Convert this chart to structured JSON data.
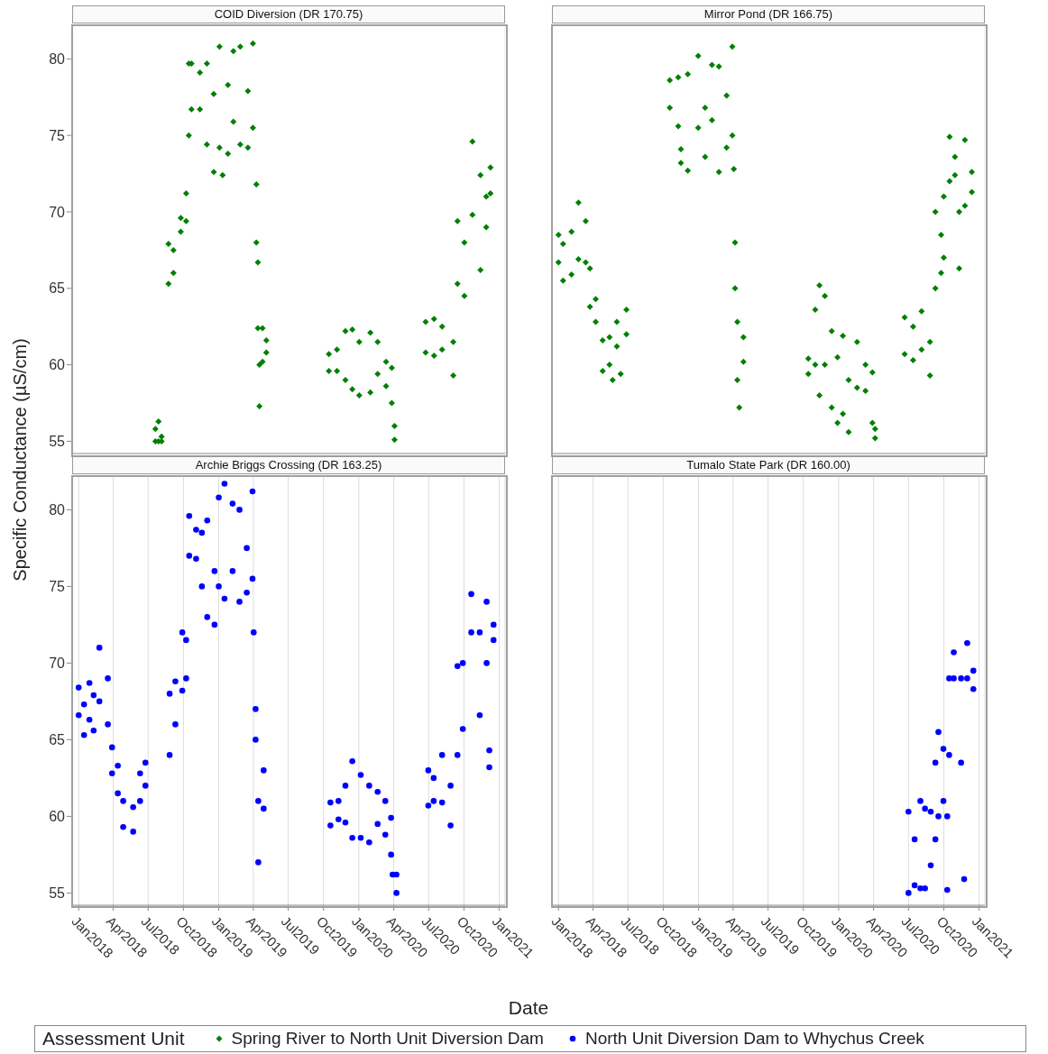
{
  "chart_data": [
    {
      "type": "scatter",
      "title": "COID Diversion (DR 170.75)",
      "ylabel": "Specific Conductance (µS/cm)",
      "legend": "bottom",
      "legend_title": "Assessment Unit",
      "grid": "x",
      "tick_labels": "y",
      "xlim": [
        "2017-12-15",
        "2021-01-16"
      ],
      "xticks": [
        {
          "value": "2018-01-01",
          "label": null
        },
        {
          "value": "2018-04-01",
          "label": null
        },
        {
          "value": "2018-07-01",
          "label": null
        },
        {
          "value": "2018-10-01",
          "label": null
        },
        {
          "value": "2019-01-01",
          "label": null
        },
        {
          "value": "2019-04-01",
          "label": null
        },
        {
          "value": "2019-07-01",
          "label": null
        },
        {
          "value": "2019-10-01",
          "label": null
        },
        {
          "value": "2020-01-01",
          "label": null
        },
        {
          "value": "2020-04-01",
          "label": null
        },
        {
          "value": "2020-07-01",
          "label": null
        },
        {
          "value": "2020-10-01",
          "label": null
        },
        {
          "value": "2021-01-01",
          "label": null
        }
      ],
      "ylim": [
        54.2,
        82.2
      ],
      "yticks": [
        55,
        60,
        65,
        70,
        75,
        80
      ],
      "series": [
        {
          "name": "Spring River to North Unit Diversion Dam",
          "color": "#008000",
          "marker": "diamond",
          "x": [
            "2018-07-20",
            "2018-07-20",
            "2018-07-28",
            "2018-07-28",
            "2018-08-05",
            "2018-08-05",
            "2018-08-23",
            "2018-08-23",
            "2018-09-05",
            "2018-09-05",
            "2018-09-24",
            "2018-09-24",
            "2018-10-08",
            "2018-10-08",
            "2018-10-15",
            "2018-10-15",
            "2018-10-22",
            "2018-10-22",
            "2018-11-13",
            "2018-11-13",
            "2018-12-01",
            "2018-12-01",
            "2018-12-19",
            "2018-12-19",
            "2019-01-03",
            "2019-01-03",
            "2019-01-11",
            "2019-01-25",
            "2019-01-25",
            "2019-02-08",
            "2019-02-08",
            "2019-02-26",
            "2019-02-26",
            "2019-03-18",
            "2019-03-18",
            "2019-03-31",
            "2019-03-31",
            "2019-04-09",
            "2019-04-09",
            "2019-04-13",
            "2019-04-13",
            "2019-04-17",
            "2019-04-17",
            "2019-04-25",
            "2019-04-25",
            "2019-05-05",
            "2019-05-05",
            "2019-10-15",
            "2019-10-15",
            "2019-11-05",
            "2019-11-05",
            "2019-11-27",
            "2019-11-27",
            "2019-12-15",
            "2019-12-15",
            "2020-01-02",
            "2020-01-02",
            "2020-01-31",
            "2020-01-31",
            "2020-02-19",
            "2020-02-19",
            "2020-03-12",
            "2020-03-12",
            "2020-03-27",
            "2020-03-27",
            "2020-04-03",
            "2020-04-03",
            "2020-06-23",
            "2020-06-23",
            "2020-07-15",
            "2020-07-15",
            "2020-08-05",
            "2020-08-05",
            "2020-09-03",
            "2020-09-03",
            "2020-09-14",
            "2020-09-14",
            "2020-10-02",
            "2020-10-02",
            "2020-10-23",
            "2020-10-23",
            "2020-11-13",
            "2020-11-13",
            "2020-11-28",
            "2020-11-28",
            "2020-12-09",
            "2020-12-09"
          ],
          "values": [
            55.0,
            55.8,
            55.0,
            56.3,
            55.0,
            55.3,
            67.9,
            65.3,
            67.5,
            66.0,
            69.6,
            68.7,
            71.2,
            69.4,
            79.7,
            75.0,
            79.7,
            76.7,
            79.1,
            76.7,
            79.7,
            74.4,
            77.7,
            72.6,
            80.8,
            74.2,
            72.4,
            78.3,
            73.8,
            80.5,
            75.9,
            80.8,
            74.4,
            77.9,
            74.2,
            81.0,
            75.5,
            71.8,
            68.0,
            66.7,
            62.4,
            57.3,
            60.0,
            62.4,
            60.2,
            61.6,
            60.8,
            59.6,
            60.7,
            59.6,
            61.0,
            62.2,
            59.0,
            62.3,
            58.4,
            58.0,
            61.5,
            62.1,
            58.2,
            61.5,
            59.4,
            60.2,
            58.6,
            59.8,
            57.5,
            55.1,
            56.0,
            62.8,
            60.8,
            63.0,
            60.6,
            62.5,
            61.0,
            59.3,
            61.5,
            65.3,
            69.4,
            68.0,
            64.5,
            74.6,
            69.8,
            72.4,
            66.2,
            71.0,
            69.0,
            72.9,
            71.2
          ]
        }
      ]
    },
    {
      "type": "scatter",
      "title": "Mirror Pond (DR 166.75)",
      "grid": "x",
      "tick_labels": false,
      "xlim": [
        "2017-12-15",
        "2021-01-16"
      ],
      "xticks": [
        {
          "value": "2018-01-01",
          "label": null
        },
        {
          "value": "2018-04-01",
          "label": null
        },
        {
          "value": "2018-07-01",
          "label": null
        },
        {
          "value": "2018-10-01",
          "label": null
        },
        {
          "value": "2019-01-01",
          "label": null
        },
        {
          "value": "2019-04-01",
          "label": null
        },
        {
          "value": "2019-07-01",
          "label": null
        },
        {
          "value": "2019-10-01",
          "label": null
        },
        {
          "value": "2020-01-01",
          "label": null
        },
        {
          "value": "2020-04-01",
          "label": null
        },
        {
          "value": "2020-07-01",
          "label": null
        },
        {
          "value": "2020-10-01",
          "label": null
        },
        {
          "value": "2021-01-01",
          "label": null
        }
      ],
      "ylim": [
        54.2,
        82.2
      ],
      "yticks": [
        55,
        60,
        65,
        70,
        75,
        80
      ],
      "series": [
        {
          "color": "#008000",
          "marker": "diamond",
          "x": [
            "2018-01-01",
            "2018-01-01",
            "2018-01-13",
            "2018-01-13",
            "2018-02-04",
            "2018-02-04",
            "2018-02-22",
            "2018-02-22",
            "2018-03-13",
            "2018-03-13",
            "2018-03-24",
            "2018-03-24",
            "2018-04-08",
            "2018-04-08",
            "2018-04-26",
            "2018-04-26",
            "2018-05-14",
            "2018-05-14",
            "2018-05-22",
            "2018-06-02",
            "2018-06-02",
            "2018-06-12",
            "2018-06-27",
            "2018-06-27",
            "2018-10-18",
            "2018-10-18",
            "2018-11-09",
            "2018-11-09",
            "2018-11-16",
            "2018-11-16",
            "2018-12-04",
            "2018-12-04",
            "2018-12-31",
            "2018-12-31",
            "2019-01-18",
            "2019-01-18",
            "2019-02-05",
            "2019-02-05",
            "2019-02-23",
            "2019-02-23",
            "2019-03-15",
            "2019-03-15",
            "2019-03-30",
            "2019-03-30",
            "2019-04-03",
            "2019-04-06",
            "2019-04-06",
            "2019-04-12",
            "2019-04-12",
            "2019-04-17",
            "2019-04-28",
            "2019-04-28",
            "2019-10-14",
            "2019-10-14",
            "2019-11-01",
            "2019-11-01",
            "2019-11-12",
            "2019-11-12",
            "2019-11-26",
            "2019-11-26",
            "2019-12-14",
            "2019-12-14",
            "2019-12-29",
            "2019-12-29",
            "2020-01-12",
            "2020-01-12",
            "2020-01-27",
            "2020-01-27",
            "2020-02-18",
            "2020-02-18",
            "2020-03-11",
            "2020-03-11",
            "2020-03-29",
            "2020-03-29",
            "2020-04-05",
            "2020-04-05",
            "2020-06-21",
            "2020-06-21",
            "2020-07-13",
            "2020-07-13",
            "2020-08-04",
            "2020-08-04",
            "2020-08-26",
            "2020-08-26",
            "2020-09-09",
            "2020-09-09",
            "2020-09-24",
            "2020-09-24",
            "2020-10-01",
            "2020-10-01",
            "2020-10-16",
            "2020-10-16",
            "2020-10-30",
            "2020-10-30",
            "2020-11-10",
            "2020-11-10",
            "2020-11-25",
            "2020-11-25",
            "2020-12-13",
            "2020-12-13"
          ],
          "values": [
            68.5,
            66.7,
            67.9,
            65.5,
            68.7,
            65.9,
            70.6,
            66.9,
            69.4,
            66.7,
            66.3,
            63.8,
            64.3,
            62.8,
            61.6,
            59.6,
            61.8,
            60.0,
            59.0,
            62.8,
            61.2,
            59.4,
            63.6,
            62.0,
            78.6,
            76.8,
            78.8,
            75.6,
            74.1,
            73.2,
            79.0,
            72.7,
            80.2,
            75.5,
            76.8,
            73.6,
            79.6,
            76.0,
            79.5,
            72.6,
            77.6,
            74.2,
            80.8,
            75.0,
            72.8,
            68.0,
            65.0,
            59.0,
            62.8,
            57.2,
            61.8,
            60.2,
            60.4,
            59.4,
            60.0,
            63.6,
            65.2,
            58.0,
            64.5,
            60.0,
            62.2,
            57.2,
            56.2,
            60.5,
            61.9,
            56.8,
            55.6,
            59.0,
            61.5,
            58.5,
            60.0,
            58.3,
            59.5,
            56.2,
            55.2,
            55.8,
            63.1,
            60.7,
            62.5,
            60.3,
            63.5,
            61.0,
            59.3,
            61.5,
            70.0,
            65.0,
            66.0,
            68.5,
            71.0,
            67.0,
            74.9,
            72.0,
            72.4,
            73.6,
            66.3,
            70.0,
            74.7,
            70.4,
            72.6,
            71.3
          ]
        }
      ]
    },
    {
      "type": "scatter",
      "title": "Archie Briggs Crossing (DR 163.25)",
      "xlabel": "Date",
      "grid": "x",
      "xlim": [
        "2017-12-15",
        "2021-01-16"
      ],
      "xticks": [
        {
          "value": "2018-01-01",
          "label": "Jan2018"
        },
        {
          "value": "2018-04-01",
          "label": "Apr2018"
        },
        {
          "value": "2018-07-01",
          "label": "Jul2018"
        },
        {
          "value": "2018-10-01",
          "label": "Oct2018"
        },
        {
          "value": "2019-01-01",
          "label": "Jan2019"
        },
        {
          "value": "2019-04-01",
          "label": "Apr2019"
        },
        {
          "value": "2019-07-01",
          "label": "Jul2019"
        },
        {
          "value": "2019-10-01",
          "label": "Oct2019"
        },
        {
          "value": "2020-01-01",
          "label": "Jan2020"
        },
        {
          "value": "2020-04-01",
          "label": "Apr2020"
        },
        {
          "value": "2020-07-01",
          "label": "Jul2020"
        },
        {
          "value": "2020-10-01",
          "label": "Oct2020"
        },
        {
          "value": "2021-01-01",
          "label": "Jan2021"
        }
      ],
      "ylim": [
        54.2,
        82.2
      ],
      "yticks": [
        55,
        60,
        65,
        70,
        75,
        80
      ],
      "series": [
        {
          "name": "North Unit Diversion Dam to Whychus Creek",
          "color": "#0000ff",
          "marker": "circle",
          "x": [
            "2018-01-01",
            "2018-01-01",
            "2018-01-15",
            "2018-01-15",
            "2018-01-29",
            "2018-01-29",
            "2018-02-09",
            "2018-02-09",
            "2018-02-24",
            "2018-02-24",
            "2018-03-18",
            "2018-03-18",
            "2018-03-29",
            "2018-03-29",
            "2018-04-13",
            "2018-04-13",
            "2018-04-27",
            "2018-04-27",
            "2018-05-23",
            "2018-05-23",
            "2018-06-10",
            "2018-06-10",
            "2018-06-24",
            "2018-06-24",
            "2018-08-26",
            "2018-08-26",
            "2018-09-10",
            "2018-09-10",
            "2018-09-28",
            "2018-09-28",
            "2018-10-08",
            "2018-10-08",
            "2018-10-16",
            "2018-10-16",
            "2018-11-03",
            "2018-11-03",
            "2018-11-18",
            "2018-11-18",
            "2018-12-02",
            "2018-12-02",
            "2018-12-21",
            "2018-12-21",
            "2019-01-01",
            "2019-01-01",
            "2019-01-16",
            "2019-01-16",
            "2019-02-06",
            "2019-02-06",
            "2019-02-24",
            "2019-02-24",
            "2019-03-15",
            "2019-03-15",
            "2019-03-30",
            "2019-03-30",
            "2019-04-02",
            "2019-04-07",
            "2019-04-07",
            "2019-04-14",
            "2019-04-14",
            "2019-04-28",
            "2019-04-28",
            "2019-10-19",
            "2019-10-19",
            "2019-11-09",
            "2019-11-09",
            "2019-11-27",
            "2019-11-27",
            "2019-12-15",
            "2019-12-15",
            "2020-01-06",
            "2020-01-06",
            "2020-01-28",
            "2020-01-28",
            "2020-02-19",
            "2020-02-19",
            "2020-03-10",
            "2020-03-10",
            "2020-03-25",
            "2020-03-25",
            "2020-03-29",
            "2020-04-08",
            "2020-04-08",
            "2020-06-30",
            "2020-06-30",
            "2020-07-14",
            "2020-07-14",
            "2020-08-05",
            "2020-08-05",
            "2020-08-27",
            "2020-08-27",
            "2020-09-14",
            "2020-09-14",
            "2020-09-28",
            "2020-09-28",
            "2020-10-20",
            "2020-10-20",
            "2020-11-11",
            "2020-11-11",
            "2020-11-29",
            "2020-11-29",
            "2020-12-06",
            "2020-12-06",
            "2020-12-17",
            "2020-12-17"
          ],
          "values": [
            68.4,
            66.6,
            67.3,
            65.3,
            68.7,
            66.3,
            67.9,
            65.6,
            71.0,
            67.5,
            69.0,
            66.0,
            64.5,
            62.8,
            63.3,
            61.5,
            61.0,
            59.3,
            60.6,
            59.0,
            62.8,
            61.0,
            63.5,
            62.0,
            68.0,
            64.0,
            68.8,
            66.0,
            72.0,
            68.2,
            71.5,
            69.0,
            79.6,
            77.0,
            76.8,
            78.7,
            78.5,
            75.0,
            73.0,
            79.3,
            72.5,
            76.0,
            80.8,
            75.0,
            81.7,
            74.2,
            80.4,
            76.0,
            74.0,
            80.0,
            74.6,
            77.5,
            81.2,
            75.5,
            72.0,
            67.0,
            65.0,
            57.0,
            61.0,
            63.0,
            60.5,
            60.9,
            59.4,
            61.0,
            59.8,
            62.0,
            59.6,
            63.6,
            58.6,
            62.7,
            58.6,
            58.3,
            62.0,
            61.6,
            59.5,
            58.8,
            61.0,
            59.9,
            57.5,
            56.2,
            55.0,
            56.2,
            63.0,
            60.7,
            62.5,
            61.0,
            64.0,
            60.9,
            59.4,
            62.0,
            69.8,
            64.0,
            70.0,
            65.7,
            74.5,
            72.0,
            72.0,
            66.6,
            74.0,
            70.0,
            64.3,
            63.2,
            71.5,
            72.5
          ]
        }
      ]
    },
    {
      "type": "scatter",
      "title": "Tumalo State Park (DR 160.00)",
      "grid": "x",
      "tick_labels": "x",
      "xlim": [
        "2017-12-15",
        "2021-01-16"
      ],
      "xticks": [
        {
          "value": "2018-01-01",
          "label": "Jan2018"
        },
        {
          "value": "2018-04-01",
          "label": "Apr2018"
        },
        {
          "value": "2018-07-01",
          "label": "Jul2018"
        },
        {
          "value": "2018-10-01",
          "label": "Oct2018"
        },
        {
          "value": "2019-01-01",
          "label": "Jan2019"
        },
        {
          "value": "2019-04-01",
          "label": "Apr2019"
        },
        {
          "value": "2019-07-01",
          "label": "Jul2019"
        },
        {
          "value": "2019-10-01",
          "label": "Oct2019"
        },
        {
          "value": "2020-01-01",
          "label": "Jan2020"
        },
        {
          "value": "2020-04-01",
          "label": "Apr2020"
        },
        {
          "value": "2020-07-01",
          "label": "Jul2020"
        },
        {
          "value": "2020-10-01",
          "label": "Oct2020"
        },
        {
          "value": "2021-01-01",
          "label": "Jan2021"
        }
      ],
      "ylim": [
        54.2,
        82.2
      ],
      "yticks": [
        55,
        60,
        65,
        70,
        75,
        80
      ],
      "series": [
        {
          "color": "#0000ff",
          "marker": "circle",
          "x": [
            "2020-07-01",
            "2020-07-01",
            "2020-07-17",
            "2020-07-17",
            "2020-08-01",
            "2020-08-01",
            "2020-08-13",
            "2020-08-13",
            "2020-08-28",
            "2020-08-28",
            "2020-09-09",
            "2020-09-09",
            "2020-09-17",
            "2020-09-17",
            "2020-09-30",
            "2020-09-30",
            "2020-10-10",
            "2020-10-10",
            "2020-10-15",
            "2020-10-15",
            "2020-10-27",
            "2020-10-27",
            "2020-11-15",
            "2020-11-15",
            "2020-11-23",
            "2020-12-01",
            "2020-12-01",
            "2020-12-17",
            "2020-12-17"
          ],
          "values": [
            60.3,
            55.0,
            58.5,
            55.5,
            61.0,
            55.3,
            55.3,
            60.5,
            60.3,
            56.8,
            63.5,
            58.5,
            65.5,
            60.0,
            64.4,
            61.0,
            60.0,
            55.2,
            69.0,
            64.0,
            70.7,
            69.0,
            63.5,
            69.0,
            55.9,
            71.3,
            69.0,
            68.3,
            69.5
          ]
        }
      ]
    }
  ]
}
